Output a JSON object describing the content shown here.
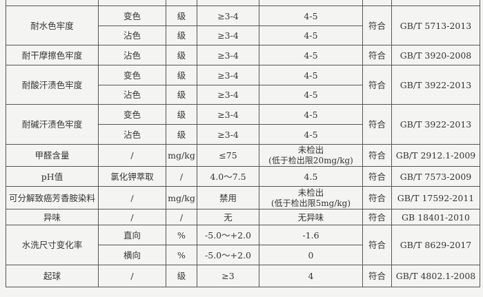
{
  "rows": [
    {
      "item": "耐水色牢度",
      "subs": [
        {
          "cond": "变色",
          "unit": "级",
          "req": "≥3-4",
          "result": "4-5"
        },
        {
          "cond": "沾色",
          "unit": "级",
          "req": "≥3-4",
          "result": "4-5"
        }
      ],
      "verdict": "符合",
      "method": "GB/T 5713-2013"
    },
    {
      "item": "耐干摩擦色牢度",
      "subs": [
        {
          "cond": "沾色",
          "unit": "级",
          "req": "≥3-4",
          "result": "4-5"
        }
      ],
      "verdict": "符合",
      "method": "GB/T 3920-2008"
    },
    {
      "item": "耐酸汗渍色牢度",
      "subs": [
        {
          "cond": "变色",
          "unit": "级",
          "req": "≥3-4",
          "result": "4-5"
        },
        {
          "cond": "沾色",
          "unit": "级",
          "req": "≥3-4",
          "result": "4-5"
        }
      ],
      "verdict": "符合",
      "method": "GB/T 3922-2013"
    },
    {
      "item": "耐碱汗渍色牢度",
      "subs": [
        {
          "cond": "变色",
          "unit": "级",
          "req": "≥3-4",
          "result": "4-5"
        },
        {
          "cond": "沾色",
          "unit": "级",
          "req": "≥3-4",
          "result": "4-5"
        }
      ],
      "verdict": "符合",
      "method": "GB/T 3922-2013"
    },
    {
      "item": "甲醛含量",
      "subs": [
        {
          "cond": "/",
          "unit": "mg/kg",
          "req": "≤75",
          "result": "未检出",
          "result2": "(低于检出限20mg/kg)"
        }
      ],
      "verdict": "符合",
      "method": "GB/T 2912.1-2009"
    },
    {
      "item": "pH值",
      "subs": [
        {
          "cond": "氯化钾萃取",
          "unit": "/",
          "req": "4.0～7.5",
          "result": "4.5"
        }
      ],
      "verdict": "符合",
      "method": "GB/T 7573-2009"
    },
    {
      "item": "可分解致癌芳香胺染料",
      "subs": [
        {
          "cond": "/",
          "unit": "mg/kg",
          "req": "禁用",
          "result": "未检出",
          "result2": "(低于检出限5mg/kg)"
        }
      ],
      "verdict": "符合",
      "method": "GB/T 17592-2011"
    },
    {
      "item": "异味",
      "subs": [
        {
          "cond": "/",
          "unit": "/",
          "req": "无",
          "result": "无异味"
        }
      ],
      "verdict": "符合",
      "method": "GB 18401-2010"
    },
    {
      "item": "水洗尺寸变化率",
      "subs": [
        {
          "cond": "直向",
          "unit": "%",
          "req": "-5.0～+2.0",
          "result": "-1.6"
        },
        {
          "cond": "横向",
          "unit": "%",
          "req": "-5.0～+2.0",
          "result": "0"
        }
      ],
      "verdict": "符合",
      "method": "GB/T 8629-2017"
    },
    {
      "item": "起球",
      "subs": [
        {
          "cond": "/",
          "unit": "级",
          "req": "≥3",
          "result": "4"
        }
      ],
      "verdict": "符合",
      "method": "GB/T 4802.1-2008"
    }
  ]
}
